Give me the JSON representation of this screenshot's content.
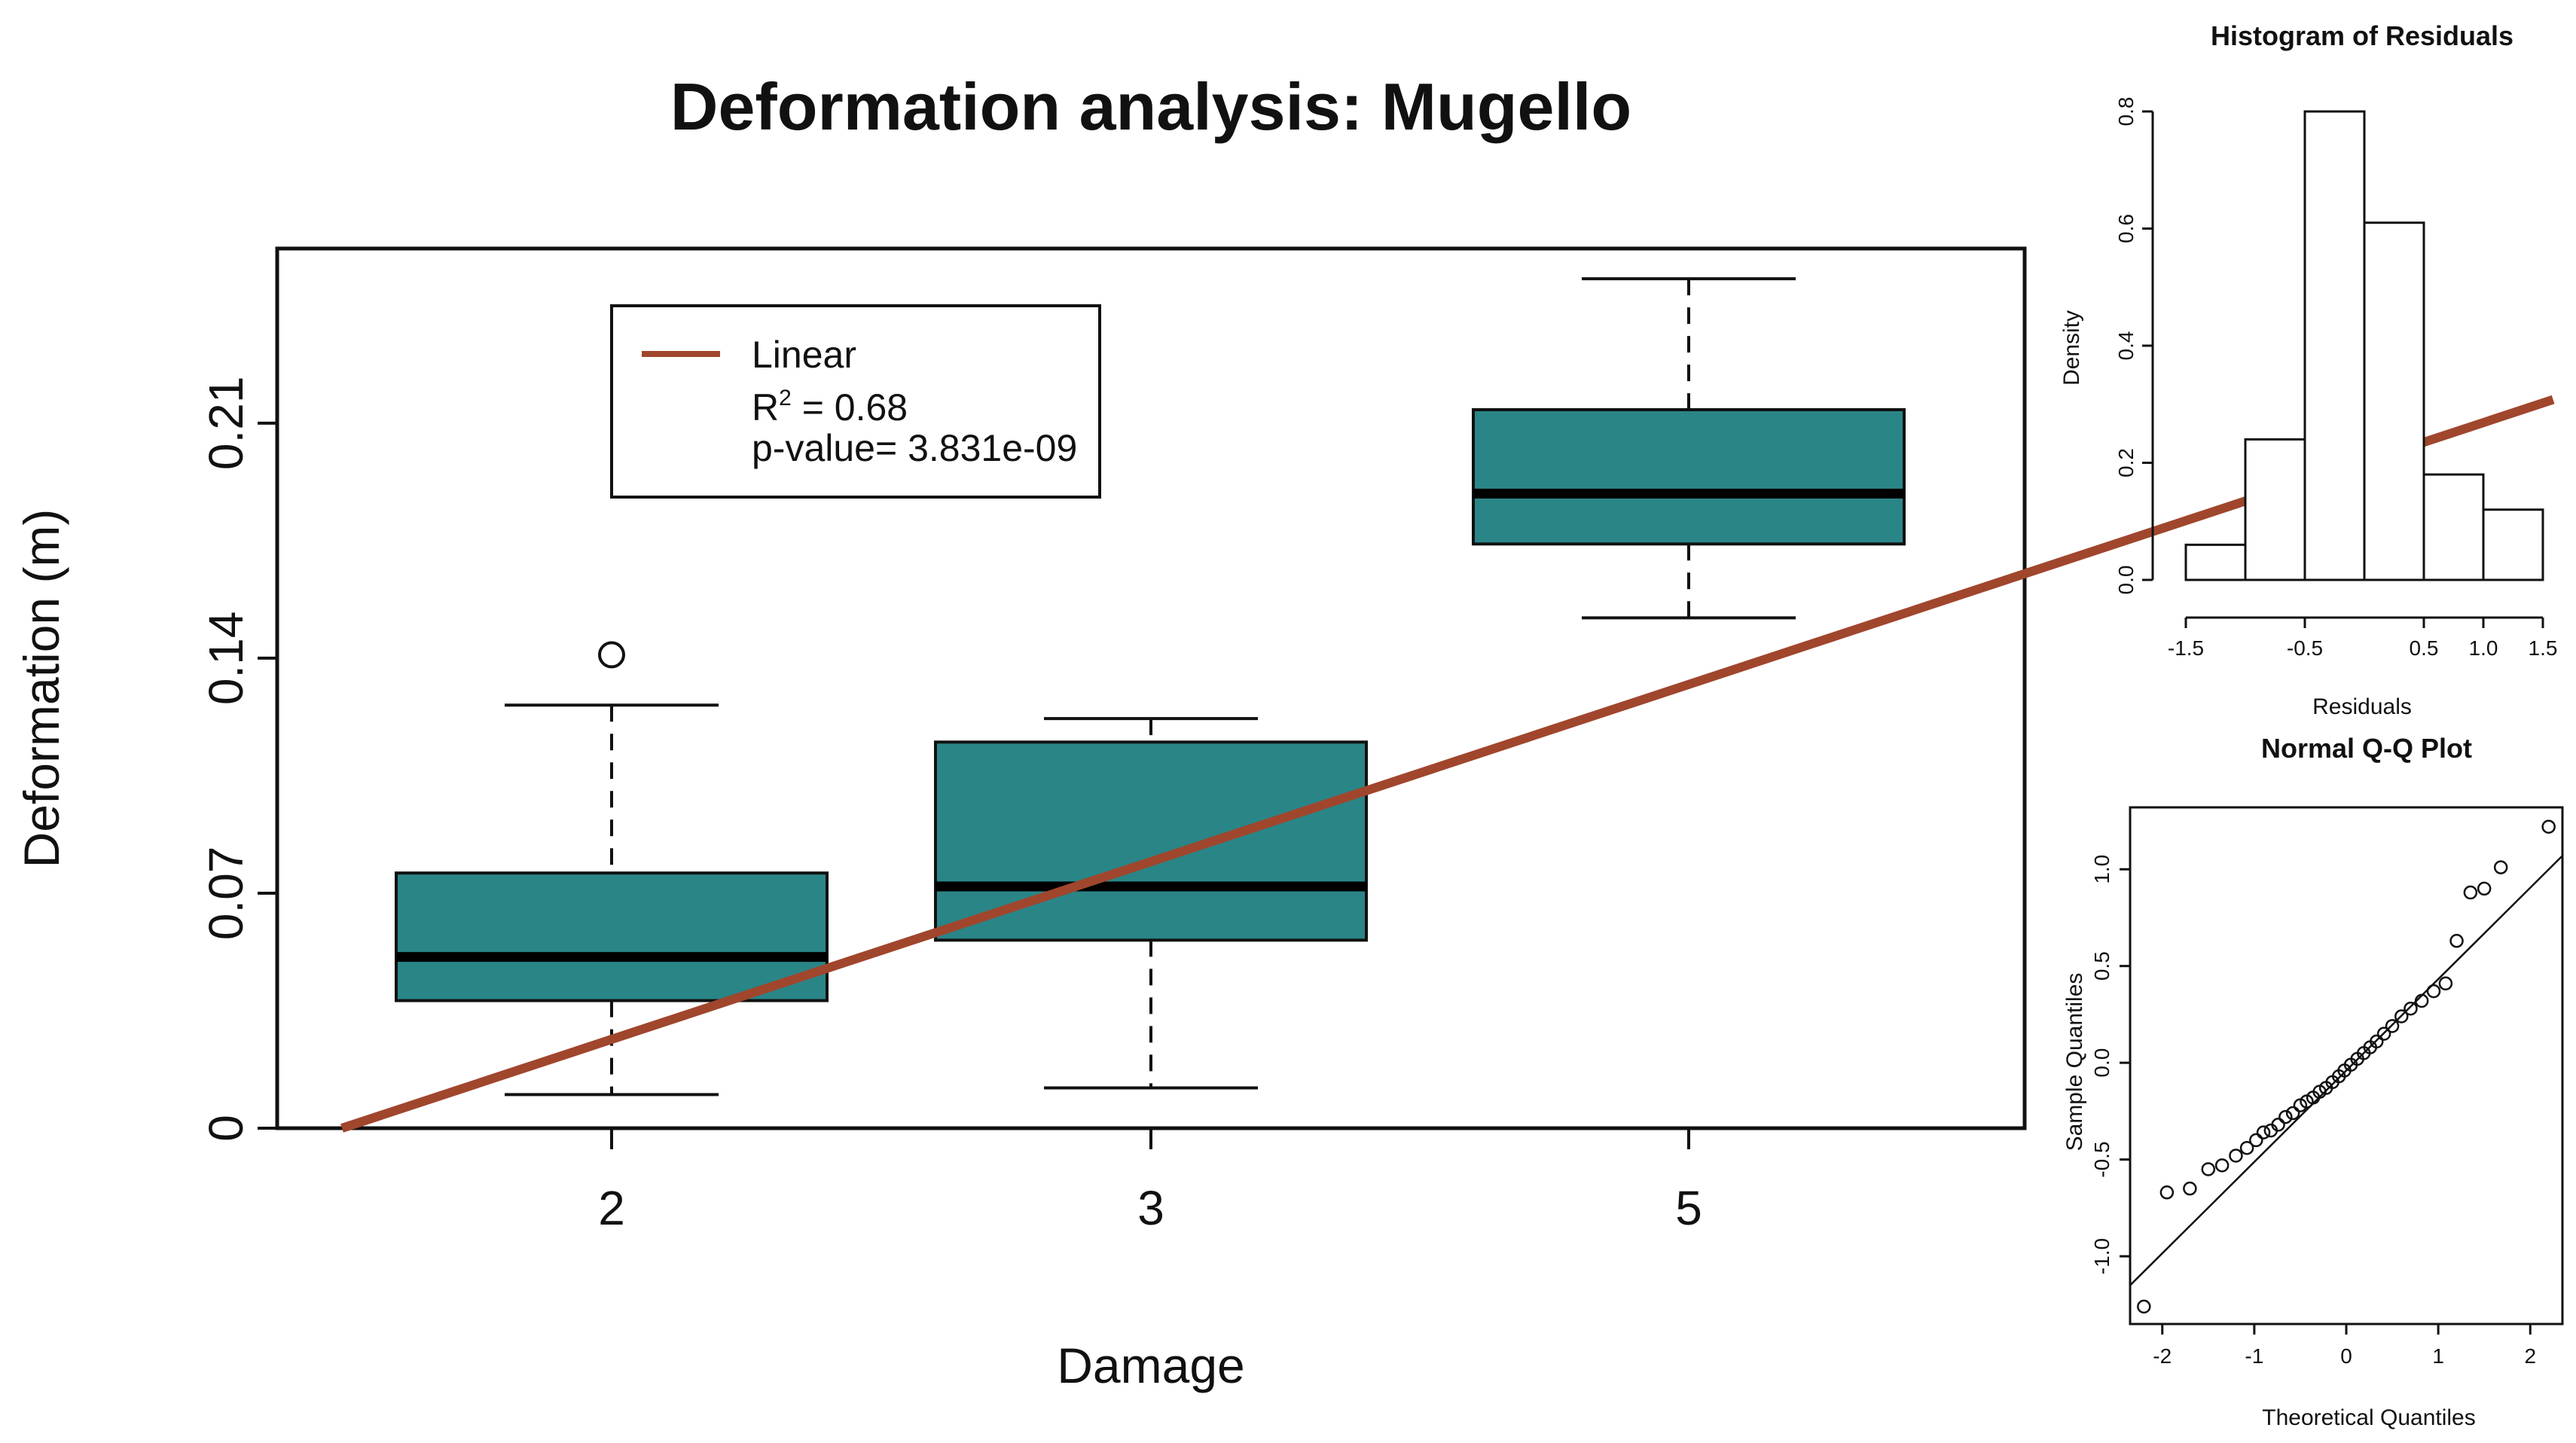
{
  "chart_data": [
    {
      "type": "boxplot",
      "title": "Deformation analysis: Mugello",
      "xlabel": "Damage",
      "ylabel": "Deformation (m)",
      "categories": [
        "2",
        "3",
        "5"
      ],
      "y_ticks": [
        "0",
        "0.07",
        "0.14",
        "0.21"
      ],
      "y_tick_values": [
        0,
        0.07,
        0.14,
        0.21
      ],
      "ylim": [
        0,
        0.262
      ],
      "boxes": [
        {
          "category": "2",
          "whisker_low": 0.01,
          "q1": 0.038,
          "median": 0.051,
          "q3": 0.076,
          "whisker_high": 0.126,
          "outliers": [
            0.141
          ]
        },
        {
          "category": "3",
          "whisker_low": 0.012,
          "q1": 0.056,
          "median": 0.072,
          "q3": 0.115,
          "whisker_high": 0.122,
          "outliers": []
        },
        {
          "category": "5",
          "whisker_low": 0.152,
          "q1": 0.174,
          "median": 0.189,
          "q3": 0.214,
          "whisker_high": 0.253,
          "outliers": []
        }
      ],
      "fit_line": {
        "name": "Linear",
        "x_start": 1.5,
        "y_start": 0.0,
        "x_end": 5.6,
        "y_end": 0.217
      },
      "legend": {
        "line_label": "Linear",
        "r2_prefix": "R",
        "r2_exp": "2",
        "r2_value": " = 0.68",
        "pvalue": "p-value= 3.831e-09",
        "placement": "top-left"
      },
      "colors": {
        "box": "#2a8587",
        "line": "#a0462d"
      }
    },
    {
      "type": "histogram",
      "title": "Histogram of Residuals",
      "xlabel": "Residuals",
      "ylabel": "Density",
      "x_ticks": [
        "-1.5",
        "-0.5",
        "0.5",
        "1.0",
        "1.5"
      ],
      "x_tick_values": [
        -1.5,
        -0.5,
        0.5,
        1.0,
        1.5
      ],
      "y_ticks": [
        "0.0",
        "0.2",
        "0.4",
        "0.6",
        "0.8"
      ],
      "y_tick_values": [
        0,
        0.2,
        0.4,
        0.6,
        0.8
      ],
      "bin_edges": [
        -1.5,
        -1.0,
        -0.5,
        0.0,
        0.5,
        1.0,
        1.5
      ],
      "density": [
        0.06,
        0.24,
        0.8,
        0.61,
        0.18,
        0.12
      ],
      "ylim": [
        0,
        0.8
      ]
    },
    {
      "type": "scatter",
      "title": "Normal Q-Q Plot",
      "xlabel": "Theoretical Quantiles",
      "ylabel": "Sample Quantiles",
      "x_ticks": [
        "-2",
        "-1",
        "0",
        "1",
        "2"
      ],
      "x_tick_values": [
        -2,
        -1,
        0,
        1,
        2
      ],
      "y_ticks": [
        "-1.0",
        "-0.5",
        "0.0",
        "0.5",
        "1.0"
      ],
      "y_tick_values": [
        -1.0,
        -0.5,
        0.0,
        0.5,
        1.0
      ],
      "xlim": [
        -2.35,
        2.35
      ],
      "ylim": [
        -1.35,
        1.32
      ],
      "reference_line": {
        "x1": -2.35,
        "y1": -1.15,
        "x2": 2.35,
        "y2": 1.07
      },
      "points": [
        [
          -2.2,
          -1.26
        ],
        [
          -1.95,
          -0.67
        ],
        [
          -1.7,
          -0.65
        ],
        [
          -1.5,
          -0.55
        ],
        [
          -1.35,
          -0.53
        ],
        [
          -1.2,
          -0.48
        ],
        [
          -1.08,
          -0.44
        ],
        [
          -0.98,
          -0.4
        ],
        [
          -0.9,
          -0.36
        ],
        [
          -0.82,
          -0.35
        ],
        [
          -0.74,
          -0.32
        ],
        [
          -0.66,
          -0.28
        ],
        [
          -0.58,
          -0.26
        ],
        [
          -0.5,
          -0.22
        ],
        [
          -0.43,
          -0.2
        ],
        [
          -0.36,
          -0.18
        ],
        [
          -0.29,
          -0.15
        ],
        [
          -0.22,
          -0.13
        ],
        [
          -0.15,
          -0.1
        ],
        [
          -0.08,
          -0.07
        ],
        [
          -0.02,
          -0.04
        ],
        [
          0.05,
          -0.01
        ],
        [
          0.12,
          0.02
        ],
        [
          0.19,
          0.05
        ],
        [
          0.26,
          0.08
        ],
        [
          0.33,
          0.11
        ],
        [
          0.41,
          0.15
        ],
        [
          0.5,
          0.19
        ],
        [
          0.6,
          0.24
        ],
        [
          0.7,
          0.28
        ],
        [
          0.82,
          0.32
        ],
        [
          0.95,
          0.37
        ],
        [
          1.08,
          0.41
        ],
        [
          1.2,
          0.63
        ],
        [
          1.35,
          0.88
        ],
        [
          1.5,
          0.9
        ],
        [
          1.68,
          1.01
        ],
        [
          2.2,
          1.22
        ]
      ]
    }
  ]
}
